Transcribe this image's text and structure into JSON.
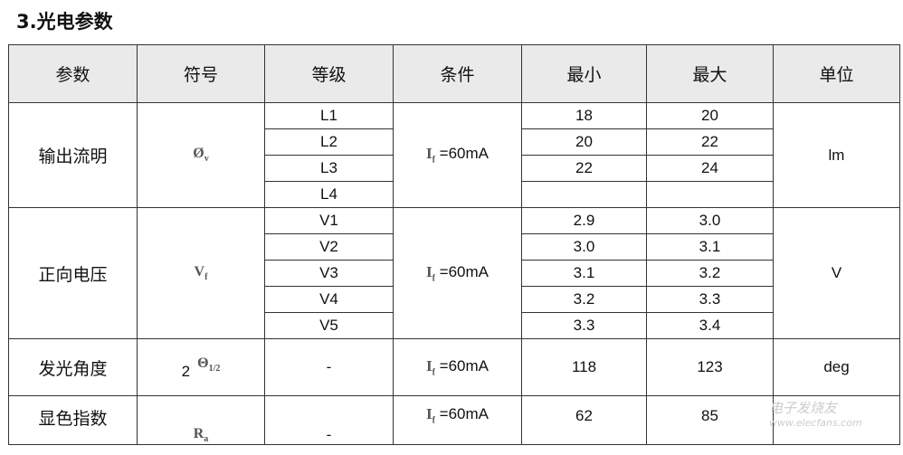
{
  "title": "3.光电参数",
  "headers": [
    "参数",
    "符号",
    "等级",
    "条件",
    "最小",
    "最大",
    "单位"
  ],
  "condition": "=60mA",
  "condition_symbol": "I",
  "condition_sub": "f",
  "groups": {
    "lumen": {
      "param": "输出流明",
      "symbol": "Ø",
      "symbol_sub": "v",
      "unit": "lm",
      "rows": [
        {
          "grade": "L1",
          "min": "18",
          "max": "20"
        },
        {
          "grade": "L2",
          "min": "20",
          "max": "22"
        },
        {
          "grade": "L3",
          "min": "22",
          "max": "24"
        },
        {
          "grade": "L4",
          "min": "",
          "max": ""
        }
      ]
    },
    "voltage": {
      "param": "正向电压",
      "symbol": "V",
      "symbol_sub": "f",
      "unit": "V",
      "rows": [
        {
          "grade": "V1",
          "min": "2.9",
          "max": "3.0"
        },
        {
          "grade": "V2",
          "min": "3.0",
          "max": "3.1"
        },
        {
          "grade": "V3",
          "min": "3.1",
          "max": "3.2"
        },
        {
          "grade": "V4",
          "min": "3.2",
          "max": "3.3"
        },
        {
          "grade": "V5",
          "min": "3.3",
          "max": "3.4"
        }
      ]
    },
    "angle": {
      "param": "发光角度",
      "symbol_prefix": "2",
      "symbol": "Θ",
      "symbol_sub": "1/2",
      "grade": "-",
      "min": "118",
      "max": "123",
      "unit": "deg"
    },
    "cri": {
      "param": "显色指数",
      "symbol": "R",
      "symbol_sub": "a",
      "grade": "-",
      "min": "62",
      "max": "85",
      "unit": ""
    }
  },
  "watermark": {
    "name": "电子发烧友",
    "url": "www.elecfans.com"
  }
}
